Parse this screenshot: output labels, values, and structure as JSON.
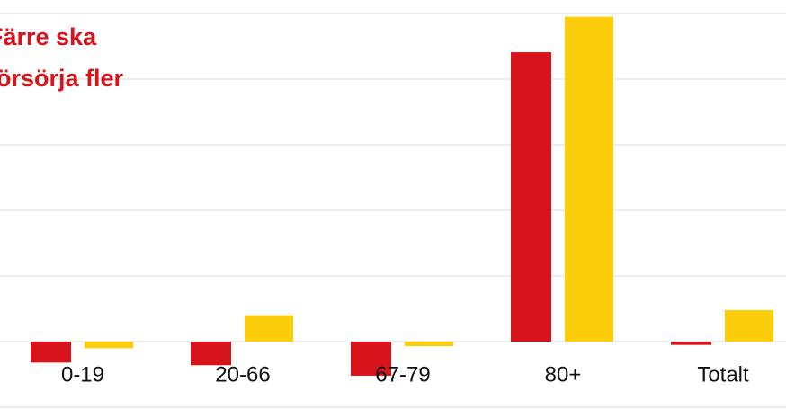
{
  "chart_data": {
    "type": "bar",
    "title": "Färre ska försörja fler",
    "categories": [
      "0-19",
      "20-66",
      "67-79",
      "80+",
      "Totalt"
    ],
    "series": [
      {
        "color": "#d7141c",
        "values": [
          -3.2,
          -3.6,
          -5.2,
          44.1,
          -0.5
        ]
      },
      {
        "color": "#fbcd0b",
        "values": [
          -1.0,
          4.0,
          -0.7,
          49.5,
          4.8
        ]
      }
    ],
    "ylim": [
      -10,
      50
    ],
    "yticks": [
      -10,
      0,
      10,
      20,
      30,
      40,
      50
    ],
    "grid": true
  }
}
